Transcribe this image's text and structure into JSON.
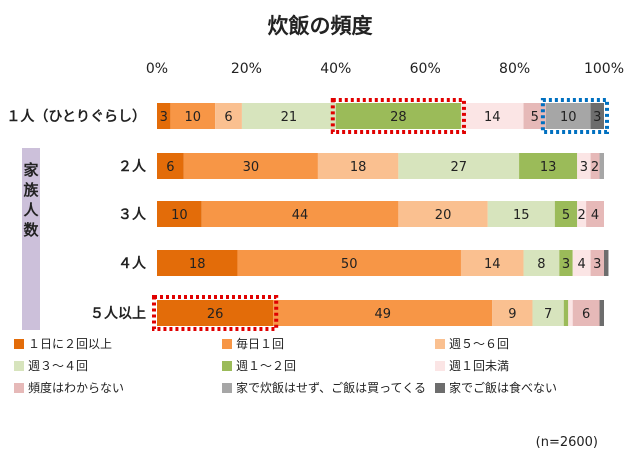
{
  "chart_data": {
    "type": "bar",
    "orientation": "horizontal",
    "stacked": true,
    "title": "炊飯の頻度",
    "x_ticks": [
      "0%",
      "20%",
      "40%",
      "60%",
      "80%",
      "100%"
    ],
    "xlim": [
      0,
      100
    ],
    "grid": false,
    "legend_position": "bottom",
    "side_label": "家族人数",
    "note": "(n=2600)",
    "categories": [
      "１人（ひとりぐらし）",
      "２人",
      "３人",
      "４人",
      "５人以上"
    ],
    "series": [
      {
        "name": "１日に２回以上",
        "color": "#e36c09",
        "values": [
          3,
          6,
          10,
          18,
          26
        ]
      },
      {
        "name": "毎日１回",
        "color": "#f79646",
        "values": [
          10,
          30,
          44,
          50,
          49
        ]
      },
      {
        "name": "週５～６回",
        "color": "#fac090",
        "values": [
          6,
          18,
          20,
          14,
          9
        ]
      },
      {
        "name": "週３～４回",
        "color": "#d7e4bd",
        "values": [
          21,
          27,
          15,
          8,
          7
        ]
      },
      {
        "name": "週１～２回",
        "color": "#9bbb59",
        "values": [
          28,
          13,
          5,
          3,
          1
        ]
      },
      {
        "name": "週１回未満",
        "color": "#fbe5e5",
        "values": [
          14,
          3,
          2,
          4,
          1
        ]
      },
      {
        "name": "頻度はわからない",
        "color": "#e6b9b8",
        "values": [
          5,
          2,
          4,
          3,
          6
        ]
      },
      {
        "name": "家で炊飯はせず、ご飯は買ってくる",
        "color": "#a6a6a6",
        "values": [
          10,
          1,
          0,
          0,
          0
        ]
      },
      {
        "name": "家でご飯は食べない",
        "color": "#6d6d6d",
        "values": [
          3,
          0,
          0,
          1,
          1
        ]
      }
    ],
    "label_threshold": 1.5,
    "highlights": [
      {
        "category": 0,
        "series": 4,
        "color": "#e00000"
      },
      {
        "category": 0,
        "series": [
          7,
          8
        ],
        "color": "#0070c0"
      },
      {
        "category": 4,
        "series": 0,
        "color": "#e00000"
      }
    ]
  }
}
